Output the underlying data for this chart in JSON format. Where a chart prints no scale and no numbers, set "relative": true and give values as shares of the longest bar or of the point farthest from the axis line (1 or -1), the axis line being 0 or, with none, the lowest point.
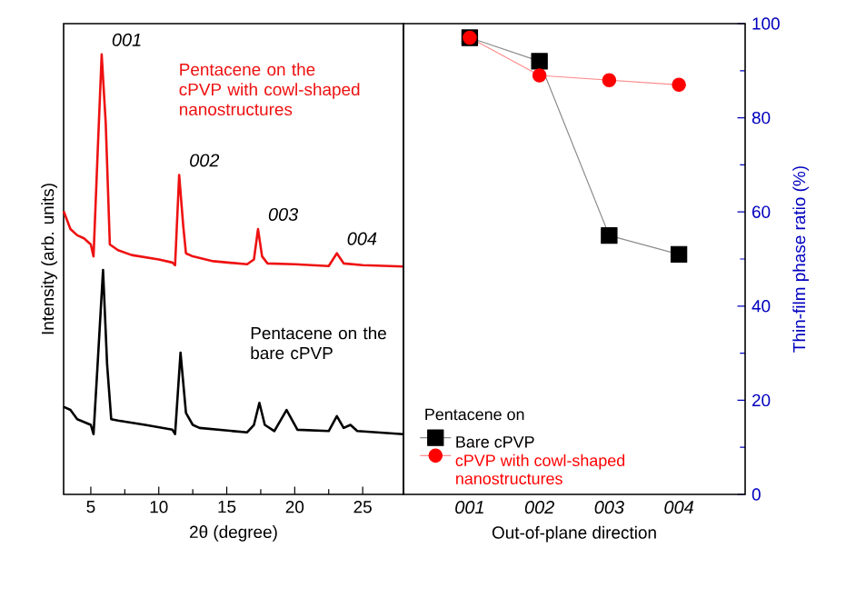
{
  "chart_data": [
    {
      "type": "line",
      "relative": true,
      "xlabel": "2θ (degree)",
      "ylabel": "Intensity (arb. units)",
      "xlim": [
        3,
        28
      ],
      "xticks": [
        5,
        10,
        15,
        20,
        25
      ],
      "tick_labels": "x",
      "series": [
        {
          "name": "Pentacene on the cPVP with cowl-shaped nanostructures",
          "color": "#ee1111",
          "x": [
            3,
            3.5,
            4,
            4.5,
            5,
            5.2,
            5.5,
            5.8,
            6.1,
            6.4,
            7,
            8,
            10,
            11,
            11.2,
            11.5,
            11.8,
            12,
            12.5,
            14,
            16.5,
            17,
            17.3,
            17.6,
            18,
            20,
            22.5,
            23.1,
            23.6,
            25,
            28
          ],
          "values": [
            0.644,
            0.603,
            0.589,
            0.582,
            0.568,
            0.541,
            0.774,
            1.0,
            0.842,
            0.568,
            0.555,
            0.544,
            0.534,
            0.527,
            0.521,
            0.726,
            0.61,
            0.548,
            0.541,
            0.53,
            0.523,
            0.534,
            0.603,
            0.541,
            0.525,
            0.523,
            0.519,
            0.548,
            0.525,
            0.521,
            0.518
          ]
        },
        {
          "name": "Pentacene on the bare cPVP",
          "color": "#000000",
          "x": [
            3,
            3.5,
            4,
            5,
            5.2,
            5.5,
            5.9,
            6.2,
            6.5,
            7,
            9,
            11,
            11.2,
            11.6,
            12,
            12.5,
            13,
            16.5,
            17,
            17.4,
            17.8,
            18.5,
            19.4,
            20.2,
            22.5,
            23.1,
            23.6,
            24.1,
            24.6,
            28
          ],
          "values": [
            0.199,
            0.192,
            0.171,
            0.158,
            0.137,
            0.295,
            0.51,
            0.295,
            0.171,
            0.168,
            0.158,
            0.147,
            0.137,
            0.322,
            0.185,
            0.158,
            0.151,
            0.141,
            0.158,
            0.208,
            0.158,
            0.144,
            0.192,
            0.147,
            0.144,
            0.178,
            0.151,
            0.158,
            0.144,
            0.137
          ]
        }
      ],
      "annotations": [
        {
          "text": "001",
          "x": 5.8,
          "y": 1.0
        },
        {
          "text": "002",
          "x": 11.5,
          "y": 0.726
        },
        {
          "text": "003",
          "x": 17.3,
          "y": 0.603
        },
        {
          "text": "004",
          "x": 23.1,
          "y": 0.548
        }
      ]
    },
    {
      "type": "line",
      "categories": [
        "001",
        "002",
        "003",
        "004"
      ],
      "xlabel": "Out-of-plane direction",
      "ylabel": "Thin-film phase ratio (%)",
      "ylim": [
        0,
        100
      ],
      "yticks": [
        0,
        20,
        40,
        60,
        80,
        100
      ],
      "legend": "bottom left",
      "legend_title": "Pentacene on",
      "series": [
        {
          "name": "Bare cPVP",
          "color": "#000000",
          "marker": "square",
          "values": [
            97,
            92,
            55,
            51
          ]
        },
        {
          "name": "cPVP with cowl-shaped nanostructures",
          "color": "#ff0000",
          "marker": "circle",
          "values": [
            97,
            89,
            88,
            87
          ]
        }
      ]
    }
  ]
}
